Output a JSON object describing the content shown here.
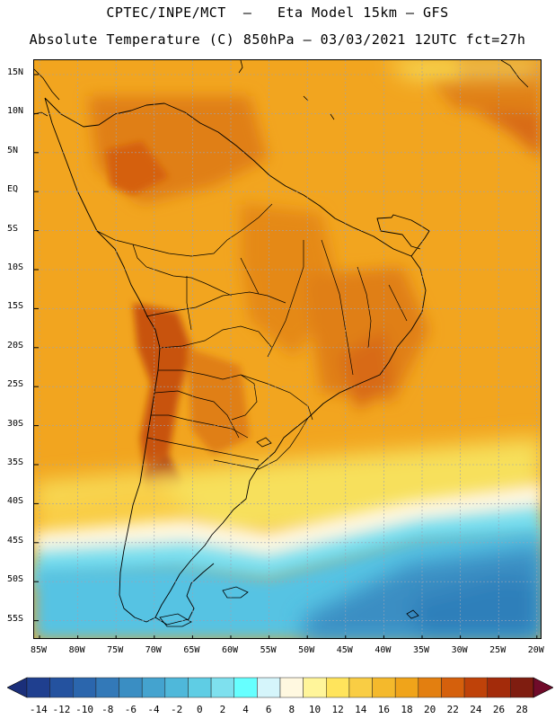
{
  "header": {
    "title_line1": "CPTEC/INPE/MCT  –   Eta Model 15km – GFS",
    "title_line2": "Absolute Temperature (C) 850hPa – 03/03/2021 12UTC fct=27h"
  },
  "map": {
    "lat_labels": [
      "15N",
      "10N",
      "5N",
      "EQ",
      "5S",
      "10S",
      "15S",
      "20S",
      "25S",
      "30S",
      "35S",
      "40S",
      "45S",
      "50S",
      "55S"
    ],
    "lon_labels": [
      "85W",
      "80W",
      "75W",
      "70W",
      "65W",
      "60W",
      "55W",
      "50W",
      "45W",
      "40W",
      "35W",
      "30W",
      "25W",
      "20W"
    ],
    "colors": {
      "ocean_warm": "#f2a51f",
      "land_warm": "#ec9a1c",
      "hot": "#d86a14",
      "very_hot": "#b5420e",
      "mild_yellow": "#f7e05c",
      "cool_cyan": "#57c3e3",
      "cold_blue": "#2f7fba",
      "border": "#000000"
    }
  },
  "colorbar": {
    "labels": [
      "-14",
      "-12",
      "-10",
      "-8",
      "-6",
      "-4",
      "-2",
      "0",
      "2",
      "4",
      "6",
      "8",
      "10",
      "12",
      "14",
      "16",
      "18",
      "20",
      "22",
      "24",
      "26",
      "28"
    ],
    "colors": [
      "#1f3f8f",
      "#24529f",
      "#2b66ad",
      "#3379b8",
      "#3a8ec3",
      "#44a3cf",
      "#4fb8da",
      "#5fcde4",
      "#7ee0ee",
      "#66ffff",
      "#d5f5fb",
      "#fff8e0",
      "#fff59a",
      "#ffe45c",
      "#f9cd44",
      "#f4b92c",
      "#f0a41a",
      "#e37f10",
      "#d5600c",
      "#bf4209",
      "#a32b0a",
      "#7f1d10"
    ],
    "arrow_left_color": "#1b2f7a",
    "arrow_right_color": "#700b2a"
  }
}
